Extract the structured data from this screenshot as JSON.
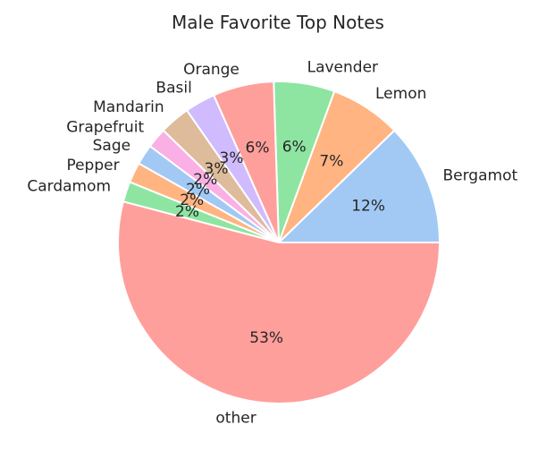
{
  "chart_data": {
    "type": "pie",
    "title": "Male Favorite Top Notes",
    "categories": [
      "Bergamot",
      "Lemon",
      "Lavender",
      "Orange",
      "Basil",
      "Mandarin",
      "Grapefruit",
      "Sage",
      "Pepper",
      "Cardamom",
      "other"
    ],
    "values": [
      12,
      7,
      6,
      6,
      3,
      3,
      2,
      2,
      2,
      2,
      53
    ],
    "value_labels": [
      "12%",
      "7%",
      "6%",
      "6%",
      "3%",
      "3%",
      "2%",
      "2%",
      "2%",
      "2%",
      "53%"
    ],
    "colors": [
      "#a1c9f4",
      "#ffb482",
      "#8de5a1",
      "#ff9f9b",
      "#d0bbff",
      "#debb9b",
      "#fab0e4",
      "#a1c9f4",
      "#ffb482",
      "#8de5a1",
      "#ff9f9b"
    ],
    "start_angle_deg": 0,
    "direction": "counterclockwise",
    "legend": "none"
  }
}
